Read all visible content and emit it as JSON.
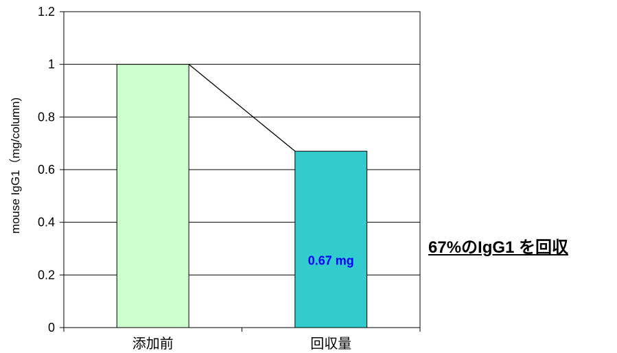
{
  "chart_data": {
    "type": "bar",
    "title": "",
    "xlabel": "",
    "ylabel": "mouse IgG1（mg/column)",
    "categories": [
      "添加前",
      "回収量"
    ],
    "values": [
      1,
      0.67
    ],
    "ylim": [
      0,
      1.2
    ],
    "yticks": [
      0,
      0.2,
      0.4,
      0.6,
      0.8,
      1,
      1.2
    ],
    "ytick_labels": [
      "0",
      "0.2",
      "0.4",
      "0.6",
      "0.8",
      "1",
      "1.2"
    ],
    "grid": true,
    "legend": "none",
    "bar_colors": [
      "#ccffcc",
      "#33cccc"
    ],
    "series_lines": true,
    "data_labels": [
      {
        "category_index": 1,
        "text": "0.67 mg"
      }
    ],
    "data_label_color": "#0000ff"
  },
  "annotation": {
    "text": "67%のIgG1 を回収"
  }
}
